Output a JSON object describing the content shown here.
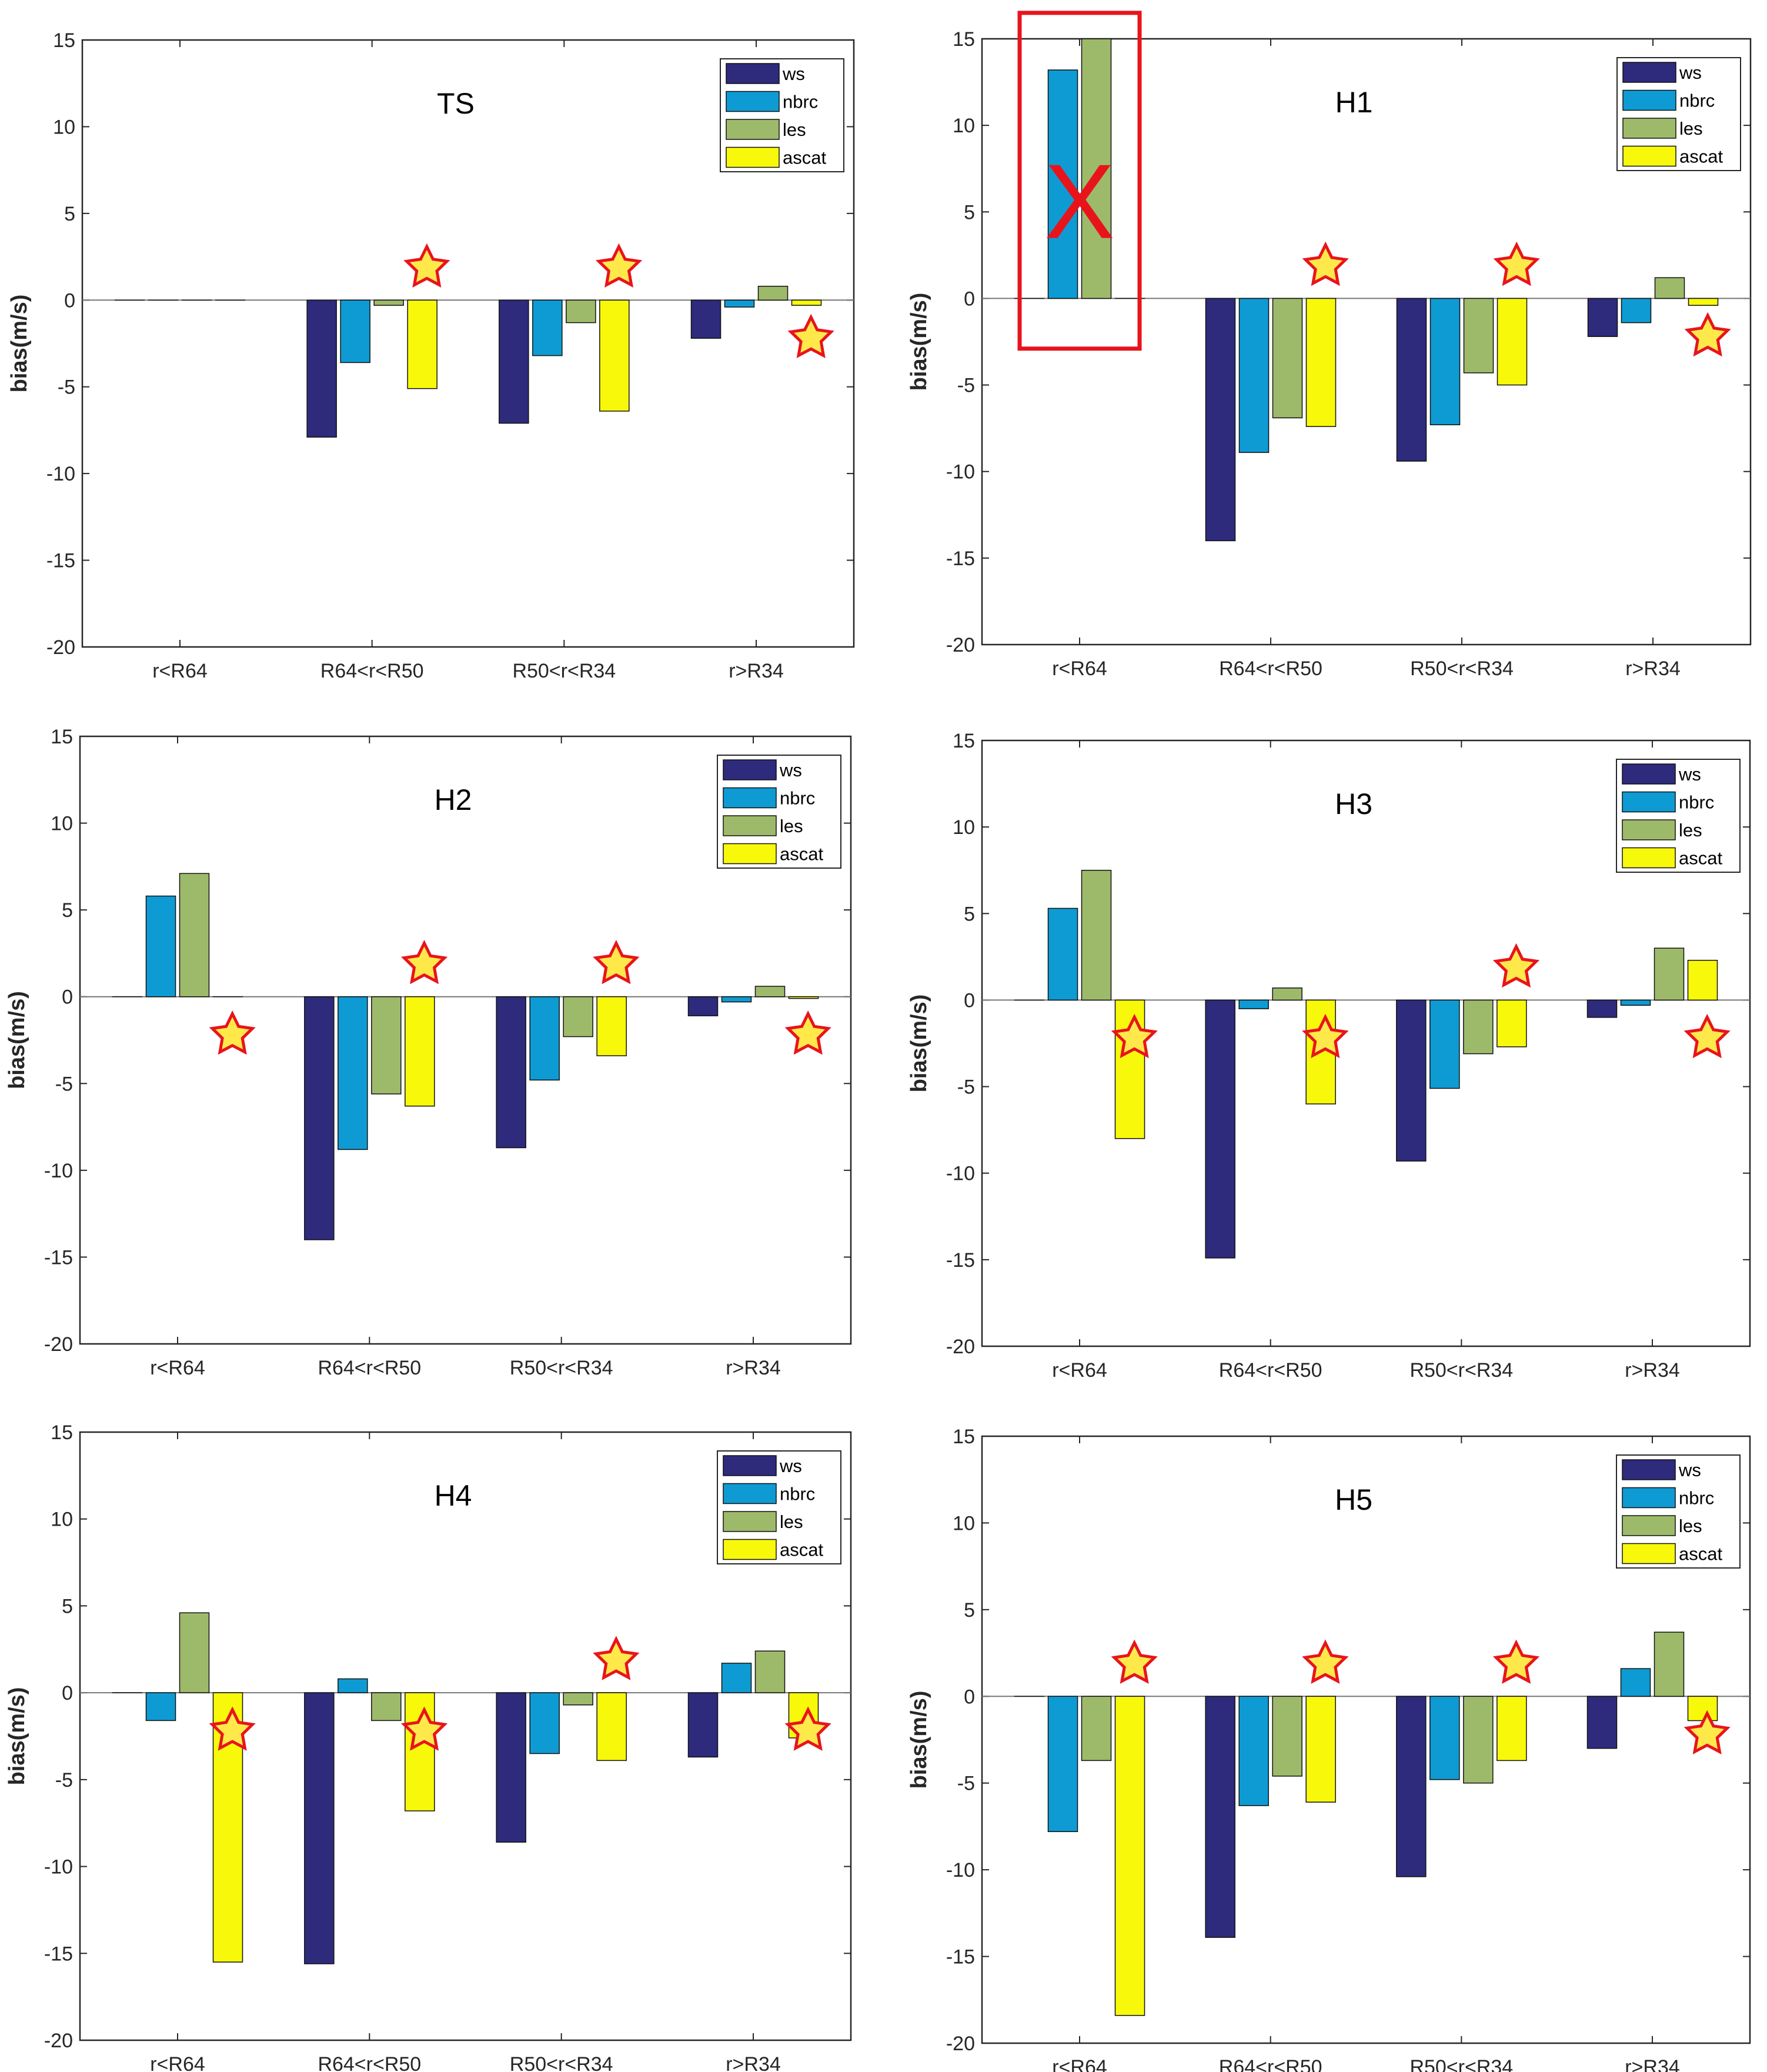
{
  "chart_data": [
    {
      "type": "bar",
      "title": "TS",
      "ylabel": "bias(m/s)",
      "categories": [
        "r<R64",
        "R64<r<R50",
        "R50<r<R34",
        "r>R34"
      ],
      "ylim": [
        -20,
        15
      ],
      "yticks": [
        15,
        10,
        5,
        0,
        -5,
        -10,
        -15,
        -20
      ],
      "legend_position": "top-right",
      "series": [
        {
          "name": "ws",
          "values": [
            0,
            -7.9,
            -7.1,
            -2.2
          ]
        },
        {
          "name": "nbrc",
          "values": [
            0,
            -3.6,
            -3.2,
            -0.4
          ]
        },
        {
          "name": "les",
          "values": [
            0,
            -0.3,
            -1.3,
            0.8
          ]
        },
        {
          "name": "ascat",
          "values": [
            0,
            -5.1,
            -6.4,
            -0.3
          ]
        }
      ],
      "stars": [
        [
          1,
          "above"
        ],
        [
          2,
          "above"
        ],
        [
          3,
          "below"
        ]
      ],
      "annotation": ""
    },
    {
      "type": "bar",
      "title": "H1",
      "ylabel": "bias(m/s)",
      "categories": [
        "r<R64",
        "R64<r<R50",
        "R50<r<R34",
        "r>R34"
      ],
      "ylim": [
        -20,
        15
      ],
      "yticks": [
        15,
        10,
        5,
        0,
        -5,
        -10,
        -15,
        -20
      ],
      "legend_position": "top-right",
      "series": [
        {
          "name": "ws",
          "values": [
            0,
            -14.0,
            -9.4,
            -2.2
          ]
        },
        {
          "name": "nbrc",
          "values": [
            13.2,
            -8.9,
            -7.3,
            -1.4
          ]
        },
        {
          "name": "les",
          "values": [
            15.0,
            -6.9,
            -4.3,
            1.2
          ]
        },
        {
          "name": "ascat",
          "values": [
            0,
            -7.4,
            -5.0,
            -0.4
          ]
        }
      ],
      "stars": [
        [
          1,
          "above"
        ],
        [
          2,
          "above"
        ],
        [
          3,
          "below"
        ]
      ],
      "annotation": "X"
    },
    {
      "type": "bar",
      "title": "H2",
      "ylabel": "bias(m/s)",
      "categories": [
        "r<R64",
        "R64<r<R50",
        "R50<r<R34",
        "r>R34"
      ],
      "ylim": [
        -20,
        15
      ],
      "yticks": [
        15,
        10,
        5,
        0,
        -5,
        -10,
        -15,
        -20
      ],
      "legend_position": "top-right",
      "series": [
        {
          "name": "ws",
          "values": [
            0,
            -14.0,
            -8.7,
            -1.1
          ]
        },
        {
          "name": "nbrc",
          "values": [
            5.8,
            -8.8,
            -4.8,
            -0.3
          ]
        },
        {
          "name": "les",
          "values": [
            7.1,
            -5.6,
            -2.3,
            0.6
          ]
        },
        {
          "name": "ascat",
          "values": [
            0,
            -6.3,
            -3.4,
            -0.1
          ]
        }
      ],
      "stars": [
        [
          0,
          "below"
        ],
        [
          1,
          "above"
        ],
        [
          2,
          "above"
        ],
        [
          3,
          "below"
        ]
      ],
      "annotation": ""
    },
    {
      "type": "bar",
      "title": "H3",
      "ylabel": "bias(m/s)",
      "categories": [
        "r<R64",
        "R64<r<R50",
        "R50<r<R34",
        "r>R34"
      ],
      "ylim": [
        -20,
        15
      ],
      "yticks": [
        15,
        10,
        5,
        0,
        -5,
        -10,
        -15,
        -20
      ],
      "legend_position": "top-right",
      "series": [
        {
          "name": "ws",
          "values": [
            0,
            -14.9,
            -9.3,
            -1.0
          ]
        },
        {
          "name": "nbrc",
          "values": [
            5.3,
            -0.5,
            -5.1,
            -0.3
          ]
        },
        {
          "name": "les",
          "values": [
            7.5,
            0.7,
            -3.1,
            3.0
          ]
        },
        {
          "name": "ascat",
          "values": [
            -8.0,
            -6.0,
            -2.7,
            2.3
          ]
        }
      ],
      "stars": [
        [
          0,
          "below"
        ],
        [
          1,
          "below"
        ],
        [
          2,
          "above"
        ],
        [
          3,
          "below"
        ]
      ],
      "annotation": ""
    },
    {
      "type": "bar",
      "title": "H4",
      "ylabel": "bias(m/s)",
      "categories": [
        "r<R64",
        "R64<r<R50",
        "R50<r<R34",
        "r>R34"
      ],
      "ylim": [
        -20,
        15
      ],
      "yticks": [
        15,
        10,
        5,
        0,
        -5,
        -10,
        -15,
        -20
      ],
      "legend_position": "top-right",
      "series": [
        {
          "name": "ws",
          "values": [
            0,
            -15.6,
            -8.6,
            -3.7
          ]
        },
        {
          "name": "nbrc",
          "values": [
            -1.6,
            0.8,
            -3.5,
            1.7
          ]
        },
        {
          "name": "les",
          "values": [
            4.6,
            -1.6,
            -0.7,
            2.4
          ]
        },
        {
          "name": "ascat",
          "values": [
            -15.5,
            -6.8,
            -3.9,
            -2.6
          ]
        }
      ],
      "stars": [
        [
          0,
          "below"
        ],
        [
          1,
          "below"
        ],
        [
          2,
          "above"
        ],
        [
          3,
          "below"
        ]
      ],
      "annotation": ""
    },
    {
      "type": "bar",
      "title": "H5",
      "ylabel": "bias(m/s)",
      "categories": [
        "r<R64",
        "R64<r<R50",
        "R50<r<R34",
        "r>R34"
      ],
      "ylim": [
        -20,
        15
      ],
      "yticks": [
        15,
        10,
        5,
        0,
        -5,
        -10,
        -15,
        -20
      ],
      "legend_position": "top-right",
      "series": [
        {
          "name": "ws",
          "values": [
            0,
            -13.9,
            -10.4,
            -3.0
          ]
        },
        {
          "name": "nbrc",
          "values": [
            -7.8,
            -6.3,
            -4.8,
            1.6
          ]
        },
        {
          "name": "les",
          "values": [
            -3.7,
            -4.6,
            -5.0,
            3.7
          ]
        },
        {
          "name": "ascat",
          "values": [
            -18.4,
            -6.1,
            -3.7,
            -1.4
          ]
        }
      ],
      "stars": [
        [
          0,
          "above"
        ],
        [
          1,
          "above"
        ],
        [
          2,
          "above"
        ],
        [
          3,
          "below"
        ]
      ],
      "annotation": ""
    }
  ],
  "colors": {
    "ws": "#2e2a7c",
    "nbrc": "#0e9bd3",
    "les": "#9dba6a",
    "ascat": "#f8f80b",
    "star_fill": "#ffe94a",
    "star_stroke": "#e8141c",
    "annotation": "#e8141c",
    "axis": "#262626"
  }
}
